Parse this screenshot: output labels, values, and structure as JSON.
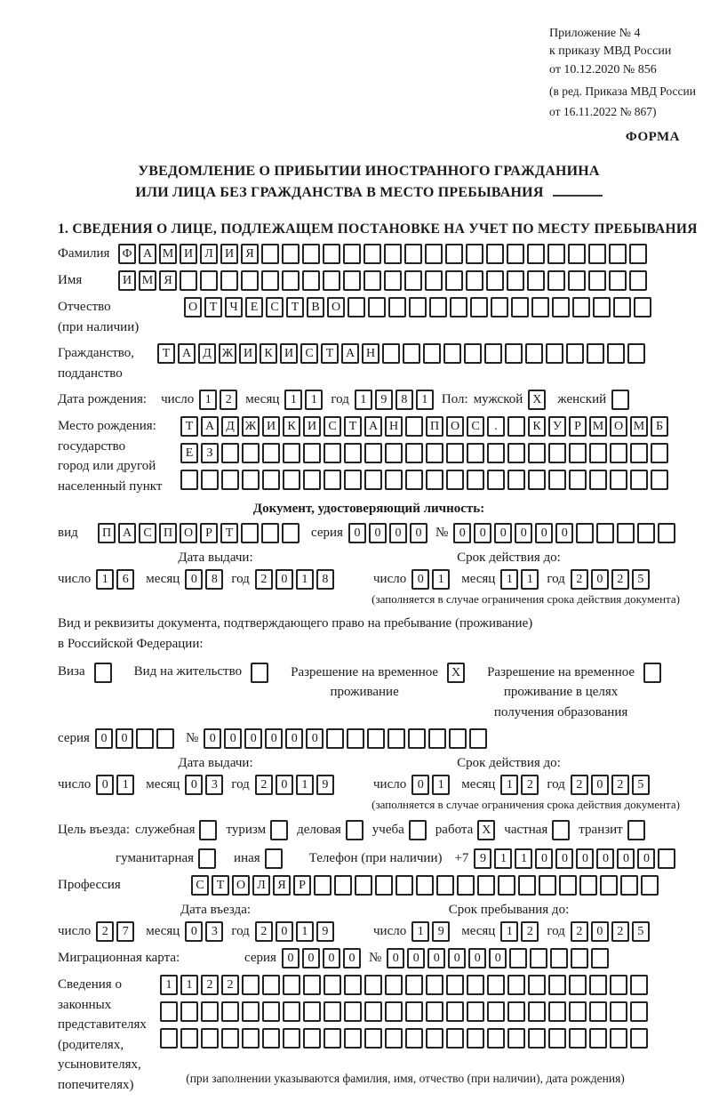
{
  "ink": "#1a1a1a",
  "header": {
    "lines": [
      "Приложение № 4",
      "к приказу МВД России",
      "от 10.12.2020 № 856"
    ],
    "sub_lines": [
      "(в ред. Приказа МВД России",
      "от 16.11.2022 № 867)"
    ],
    "forma": "ФОРМА"
  },
  "title": {
    "line1": "УВЕДОМЛЕНИЕ О ПРИБЫТИИ ИНОСТРАННОГО ГРАЖДАНИНА",
    "line2": "ИЛИ ЛИЦА БЕЗ ГРАЖДАНСТВА В МЕСТО ПРЕБЫВАНИЯ"
  },
  "section1_heading": "1. СВЕДЕНИЯ О ЛИЦЕ, ПОДЛЕЖАЩЕМ ПОСТАНОВКЕ НА УЧЕТ ПО МЕСТУ ПРЕБЫВАНИЯ",
  "surname": {
    "label": "Фамилия",
    "cells": {
      "v": "ФАМИЛИЯ",
      "n": 26
    }
  },
  "firstname": {
    "label": "Имя",
    "cells": {
      "v": "ИМЯ",
      "n": 26
    }
  },
  "patronymic": {
    "label_line1": "Отчество",
    "label_line2": "(при наличии)",
    "cells": {
      "v": "ОТЧЕСТВО",
      "n": 23
    }
  },
  "citizenship": {
    "label_line1": "Гражданство,",
    "label_line2": "подданство",
    "cells": {
      "v": "ТАДЖИКИСТАН",
      "n": 24
    }
  },
  "birth_date": {
    "label": "Дата рождения:",
    "day_label": "число",
    "day_cells": {
      "v": "12",
      "n": 2
    },
    "month_label": "месяц",
    "month_cells": {
      "v": "11",
      "n": 2
    },
    "year_label": "год",
    "year_cells": {
      "v": "1981",
      "n": 4
    },
    "sex_label": "Пол:",
    "male_label": "мужской",
    "male_checked": true,
    "female_label": "женский",
    "female_checked": false
  },
  "birth_place": {
    "label_line1": "Место рождения:",
    "label_line2": "государство",
    "label_line3": "город или другой",
    "label_line4": "населенный пункт",
    "row1_cells": {
      "v": "ТАДЖИКИСТАН ПОС. КУРМОМБ",
      "n": 24
    },
    "row2_cells": {
      "v": "ЕЗ",
      "n": 24
    },
    "row3_cells": {
      "v": "",
      "n": 24
    }
  },
  "identity_doc": {
    "heading": "Документ, удостоверяющий личность:",
    "kind_label": "вид",
    "kind_cells": {
      "v": "ПАСПОРТ",
      "n": 10
    },
    "series_label": "серия",
    "series_cells": {
      "v": "0000",
      "n": 4
    },
    "number_label": "№",
    "number_cells": {
      "v": "000000",
      "n": 11
    },
    "issue_title": "Дата выдачи:",
    "issue_day_label": "число",
    "issue_day_cells": {
      "v": "16",
      "n": 2
    },
    "issue_month_label": "месяц",
    "issue_month_cells": {
      "v": "08",
      "n": 2
    },
    "issue_year_label": "год",
    "issue_year_cells": {
      "v": "2018",
      "n": 4
    },
    "expiry_title": "Срок действия до:",
    "expiry_day_label": "число",
    "expiry_day_cells": {
      "v": "01",
      "n": 2
    },
    "expiry_month_label": "месяц",
    "expiry_month_cells": {
      "v": "11",
      "n": 2
    },
    "expiry_year_label": "год",
    "expiry_year_cells": {
      "v": "2025",
      "n": 4
    },
    "expiry_note": "(заполняется в случае ограничения срока действия документа)"
  },
  "residence_doc": {
    "intro_line1": "Вид и реквизиты документа, подтверждающего право на пребывание (проживание)",
    "intro_line2": "в Российской Федерации:",
    "visa_label": "Виза",
    "visa_checked": false,
    "permit_label": "Вид на жительство",
    "permit_checked": false,
    "temp_label_line1": "Разрешение на временное",
    "temp_label_line2": "проживание",
    "temp_checked": true,
    "edu_label_line1": "Разрешение на временное",
    "edu_label_line2": "проживание в целях",
    "edu_label_line3": "получения образования",
    "edu_checked": false,
    "series_label": "серия",
    "series_cells": {
      "v": "00",
      "n": 4
    },
    "number_label": "№",
    "number_cells": {
      "v": "000000",
      "n": 14
    },
    "issue_title": "Дата выдачи:",
    "issue_day_label": "число",
    "issue_day_cells": {
      "v": "01",
      "n": 2
    },
    "issue_month_label": "месяц",
    "issue_month_cells": {
      "v": "03",
      "n": 2
    },
    "issue_year_label": "год",
    "issue_year_cells": {
      "v": "2019",
      "n": 4
    },
    "expiry_title": "Срок действия до:",
    "expiry_day_label": "число",
    "expiry_day_cells": {
      "v": "01",
      "n": 2
    },
    "expiry_month_label": "месяц",
    "expiry_month_cells": {
      "v": "12",
      "n": 2
    },
    "expiry_year_label": "год",
    "expiry_year_cells": {
      "v": "2025",
      "n": 4
    },
    "expiry_note": "(заполняется в случае ограничения срока действия документа)"
  },
  "visit": {
    "purpose_label": "Цель въезда:",
    "row1_options": [
      {
        "label": "служебная",
        "checked": false
      },
      {
        "label": "туризм",
        "checked": false
      },
      {
        "label": "деловая",
        "checked": false
      },
      {
        "label": "учеба",
        "checked": false
      },
      {
        "label": "работа",
        "checked": true
      },
      {
        "label": "частная",
        "checked": false
      },
      {
        "label": "транзит",
        "checked": false
      }
    ],
    "row2_options": [
      {
        "label": "гуманитарная",
        "checked": false
      },
      {
        "label": "иная",
        "checked": false
      }
    ],
    "phone_label": "Телефон (при наличии)",
    "phone_prefix": "+7",
    "phone_cells": {
      "v": "911000000",
      "n": 10
    }
  },
  "profession": {
    "label": "Профессия",
    "cells": {
      "v": "СТОЛЯР",
      "n": 23
    }
  },
  "entry": {
    "entry_title": "Дата въезда:",
    "entry_day_label": "число",
    "entry_day_cells": {
      "v": "27",
      "n": 2
    },
    "entry_month_label": "месяц",
    "entry_month_cells": {
      "v": "03",
      "n": 2
    },
    "entry_year_label": "год",
    "entry_year_cells": {
      "v": "2019",
      "n": 4
    },
    "stay_title": "Срок пребывания до:",
    "stay_day_label": "число",
    "stay_day_cells": {
      "v": "19",
      "n": 2
    },
    "stay_month_label": "месяц",
    "stay_month_cells": {
      "v": "12",
      "n": 2
    },
    "stay_year_label": "год",
    "stay_year_cells": {
      "v": "2025",
      "n": 4
    }
  },
  "migration_card": {
    "label": "Миграционная карта:",
    "series_label": "серия",
    "series_cells": {
      "v": "0000",
      "n": 4
    },
    "number_label": "№",
    "number_cells": {
      "v": "000000",
      "n": 11
    }
  },
  "representatives": {
    "label_lines": [
      "Сведения о",
      "законных",
      "представителях",
      "(родителях,",
      "усыновителях,",
      "попечителях)"
    ],
    "row1_cells": {
      "v": "1122",
      "n": 24
    },
    "row2_cells": {
      "v": "",
      "n": 24
    },
    "row3_cells": {
      "v": "",
      "n": 24
    },
    "note": "(при заполнении указываются фамилия, имя, отчество (при наличии), дата рождения)"
  }
}
